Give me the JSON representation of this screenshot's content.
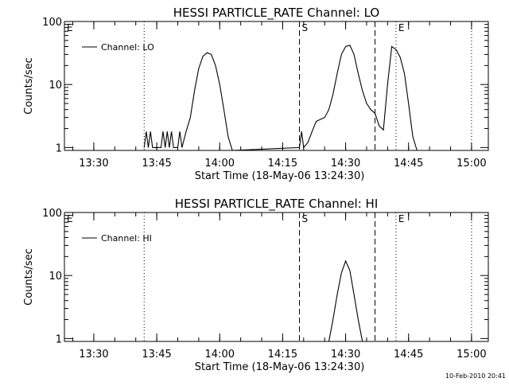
{
  "timestamp": "10-Feb-2010 20:41",
  "chart_data": [
    {
      "type": "line",
      "title": "HESSI PARTICLE_RATE Channel: LO",
      "xlabel": "Start Time (18-May-06 13:24:30)",
      "ylabel": "Counts/sec",
      "y_scale": "log",
      "xlim": [
        "13:23",
        "15:04"
      ],
      "ylim": [
        0.9,
        100
      ],
      "x_ticks": [
        "13:30",
        "13:45",
        "14:00",
        "14:15",
        "14:30",
        "14:45",
        "15:00"
      ],
      "y_ticks": [
        "1",
        "10",
        "100"
      ],
      "legend": "top-left",
      "markers": [
        {
          "label": "E",
          "x": "13:23",
          "style": "dotted"
        },
        {
          "label": "",
          "x": "13:42",
          "style": "dotted"
        },
        {
          "label": "S",
          "x": "14:19",
          "style": "dashed"
        },
        {
          "label": "",
          "x": "14:37",
          "style": "dashed"
        },
        {
          "label": "E",
          "x": "14:42",
          "style": "dotted"
        },
        {
          "label": "",
          "x": "15:00",
          "style": "dotted"
        }
      ],
      "series": [
        {
          "name": "Channel: LO",
          "points": [
            [
              "13:42",
              1
            ],
            [
              "13:42.5",
              1.8
            ],
            [
              "13:43",
              1
            ],
            [
              "13:43.5",
              1.8
            ],
            [
              "13:44",
              1
            ],
            [
              "13:46",
              1
            ],
            [
              "13:46.5",
              1.8
            ],
            [
              "13:47",
              1
            ],
            [
              "13:47.5",
              1.8
            ],
            [
              "13:48",
              1
            ],
            [
              "13:48.5",
              1.8
            ],
            [
              "13:49",
              1
            ],
            [
              "13:50",
              1
            ],
            [
              "13:50.5",
              1.8
            ],
            [
              "13:51",
              1
            ],
            [
              "13:52",
              1.8
            ],
            [
              "13:53",
              3
            ],
            [
              "13:54",
              8
            ],
            [
              "13:55",
              18
            ],
            [
              "13:56",
              28
            ],
            [
              "13:57",
              32
            ],
            [
              "13:58",
              30
            ],
            [
              "13:59",
              20
            ],
            [
              "14:00",
              10
            ],
            [
              "14:01",
              4
            ],
            [
              "14:02",
              1.5
            ],
            [
              "14:03",
              0.9
            ],
            [
              "14:19",
              1
            ],
            [
              "14:19.5",
              1.8
            ],
            [
              "14:20",
              1
            ],
            [
              "14:21",
              1.2
            ],
            [
              "14:22",
              1.8
            ],
            [
              "14:23",
              2.6
            ],
            [
              "14:24",
              2.8
            ],
            [
              "14:25",
              3
            ],
            [
              "14:26",
              4
            ],
            [
              "14:27",
              7
            ],
            [
              "14:28",
              15
            ],
            [
              "14:29",
              30
            ],
            [
              "14:30",
              40
            ],
            [
              "14:31",
              42
            ],
            [
              "14:32",
              30
            ],
            [
              "14:33",
              15
            ],
            [
              "14:34",
              8
            ],
            [
              "14:35",
              5
            ],
            [
              "14:36",
              4
            ],
            [
              "14:37",
              3.5
            ],
            [
              "14:38",
              2.2
            ],
            [
              "14:39",
              1.9
            ],
            [
              "14:40",
              10
            ],
            [
              "14:41",
              40
            ],
            [
              "14:42",
              36
            ],
            [
              "14:43",
              27
            ],
            [
              "14:44",
              15
            ],
            [
              "14:45",
              5
            ],
            [
              "14:46",
              1.5
            ],
            [
              "14:47",
              0.9
            ]
          ]
        }
      ]
    },
    {
      "type": "line",
      "title": "HESSI PARTICLE_RATE Channel: HI",
      "xlabel": "Start Time (18-May-06 13:24:30)",
      "ylabel": "Counts/sec",
      "y_scale": "log",
      "xlim": [
        "13:23",
        "15:04"
      ],
      "ylim": [
        0.9,
        100
      ],
      "x_ticks": [
        "13:30",
        "13:45",
        "14:00",
        "14:15",
        "14:30",
        "14:45",
        "15:00"
      ],
      "y_ticks": [
        "1",
        "10",
        "100"
      ],
      "legend": "top-left",
      "markers": [
        {
          "label": "E",
          "x": "13:23",
          "style": "dotted"
        },
        {
          "label": "",
          "x": "13:42",
          "style": "dotted"
        },
        {
          "label": "S",
          "x": "14:19",
          "style": "dashed"
        },
        {
          "label": "",
          "x": "14:37",
          "style": "dashed"
        },
        {
          "label": "E",
          "x": "14:42",
          "style": "dotted"
        },
        {
          "label": "",
          "x": "15:00",
          "style": "dotted"
        }
      ],
      "series": [
        {
          "name": "Channel: HI",
          "points": [
            [
              "14:26",
              0.9
            ],
            [
              "14:27",
              2
            ],
            [
              "14:28",
              5
            ],
            [
              "14:29",
              11
            ],
            [
              "14:30",
              17
            ],
            [
              "14:31",
              12
            ],
            [
              "14:32",
              5
            ],
            [
              "14:33",
              2
            ],
            [
              "14:34",
              0.9
            ]
          ]
        }
      ]
    }
  ]
}
